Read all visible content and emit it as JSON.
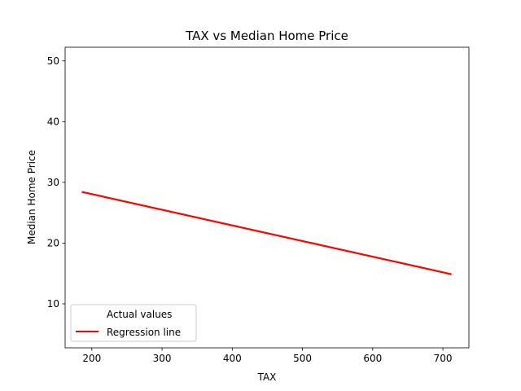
{
  "chart_data": {
    "type": "line",
    "title": "TAX vs Median Home Price",
    "xlabel": "TAX",
    "ylabel": "Median Home Price",
    "xlim": [
      162,
      737
    ],
    "ylim": [
      2.75,
      52.25
    ],
    "xticks": [
      200,
      300,
      400,
      500,
      600,
      700
    ],
    "yticks": [
      10,
      20,
      30,
      40,
      50
    ],
    "grid": false,
    "legend": {
      "placement": "lower-left",
      "entries": [
        {
          "label": "Actual values",
          "marker": "none"
        },
        {
          "label": "Regression line",
          "marker": "line"
        }
      ]
    },
    "series": [
      {
        "name": "Regression line",
        "color": "#ff0000",
        "x": [
          187,
          711
        ],
        "y": [
          28.4,
          14.9
        ]
      }
    ]
  }
}
